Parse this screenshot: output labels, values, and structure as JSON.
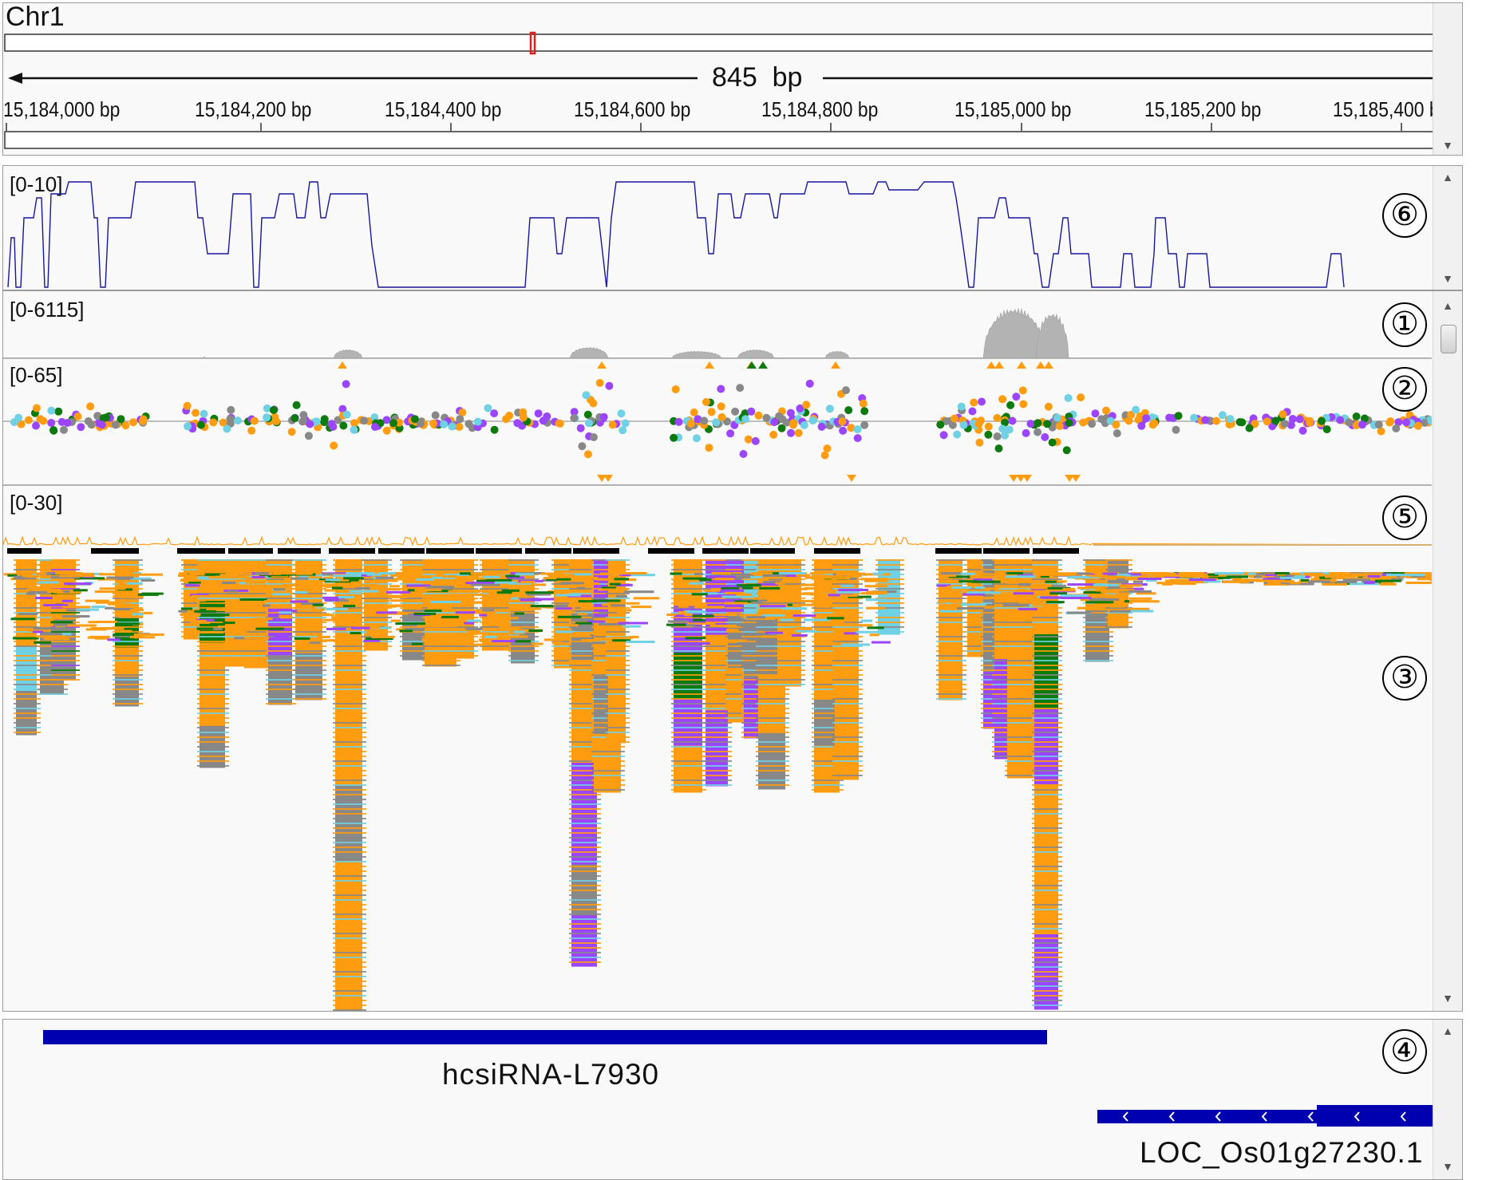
{
  "ruler": {
    "chromosome": "Chr1",
    "span_label": "845  bp",
    "ticks": [
      "15,184,000 bp",
      "15,184,200 bp",
      "15,184,400 bp",
      "15,184,600 bp",
      "15,184,800  bp",
      "15,185,000 bp",
      "15,185,200 bp",
      "15,185,400 bp"
    ]
  },
  "tracks": {
    "track6": {
      "range": "[0-10]",
      "marker": "⑥"
    },
    "track1": {
      "range": "[0-6115]",
      "marker": "①"
    },
    "track2": {
      "range": "[0-65]",
      "marker": "②"
    },
    "track5": {
      "range": "[0-30]",
      "marker": "⑤"
    },
    "track3": {
      "marker": "③"
    },
    "track4": {
      "marker": "④"
    }
  },
  "features": {
    "feature1": "hcsiRNA-L7930",
    "feature2": "LOC_Os01g27230.1"
  },
  "colors": {
    "orange": "#ff9c0f",
    "purple": "#9b45ff",
    "green": "#0c7a0c",
    "gray": "#888888",
    "cyan": "#70d0e4",
    "navy": "#1616a0",
    "gene_blue": "#0000b0",
    "coverage_gray": "#b3b3b3",
    "region_red": "#e0201e"
  },
  "scrollbars": {
    "up": "▲",
    "down": "▼"
  }
}
